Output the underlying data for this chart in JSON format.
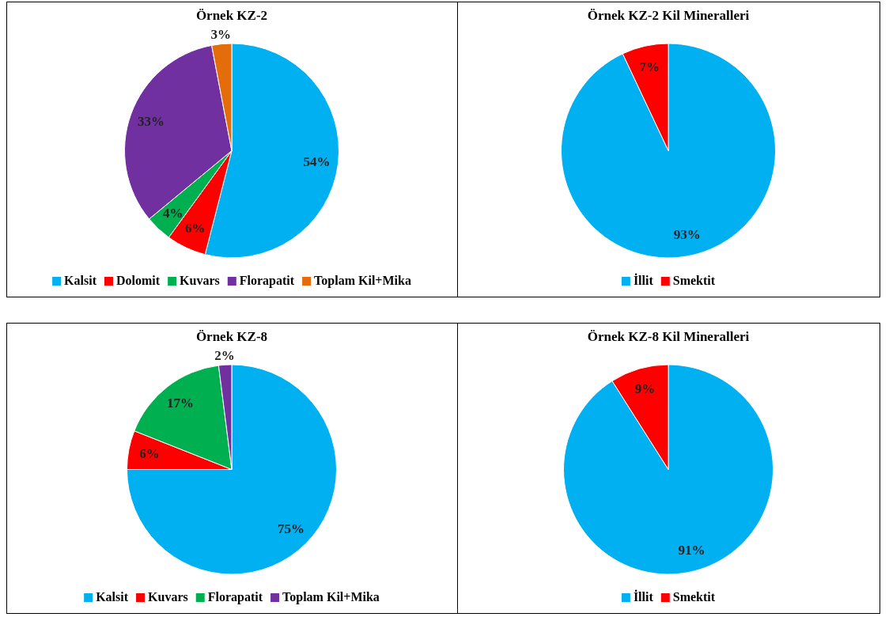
{
  "chart_data": [
    {
      "type": "pie",
      "title": "Örnek KZ-2",
      "categories": [
        "Kalsit",
        "Dolomit",
        "Kuvars",
        "Florapatit",
        "Toplam Kil+Mika"
      ],
      "values": [
        54,
        6,
        4,
        33,
        3
      ],
      "colors": [
        "#00b0f0",
        "#ff0000",
        "#00b050",
        "#7030a0",
        "#e46c0a"
      ],
      "value_labels": [
        "54%",
        "6%",
        "4%",
        "33%",
        "3%"
      ],
      "legend": "bottom"
    },
    {
      "type": "pie",
      "title": "Örnek KZ-2 Kil Mineralleri",
      "categories": [
        "İllit",
        "Smektit"
      ],
      "values": [
        93,
        7
      ],
      "colors": [
        "#00b0f0",
        "#ff0000"
      ],
      "value_labels": [
        "93%",
        "7%"
      ],
      "legend": "bottom"
    },
    {
      "type": "pie",
      "title": "Örnek KZ-8",
      "categories": [
        "Kalsit",
        "Kuvars",
        "Florapatit",
        "Toplam Kil+Mika"
      ],
      "values": [
        75,
        6,
        17,
        2
      ],
      "colors": [
        "#00b0f0",
        "#ff0000",
        "#00b050",
        "#7030a0"
      ],
      "value_labels": [
        "75%",
        "6%",
        "17%",
        "2%"
      ],
      "legend": "bottom"
    },
    {
      "type": "pie",
      "title": "Örnek KZ-8 Kil Mineralleri",
      "categories": [
        "İllit",
        "Smektit"
      ],
      "values": [
        91,
        9
      ],
      "colors": [
        "#00b0f0",
        "#ff0000"
      ],
      "value_labels": [
        "91%",
        "9%"
      ],
      "legend": "bottom"
    }
  ]
}
